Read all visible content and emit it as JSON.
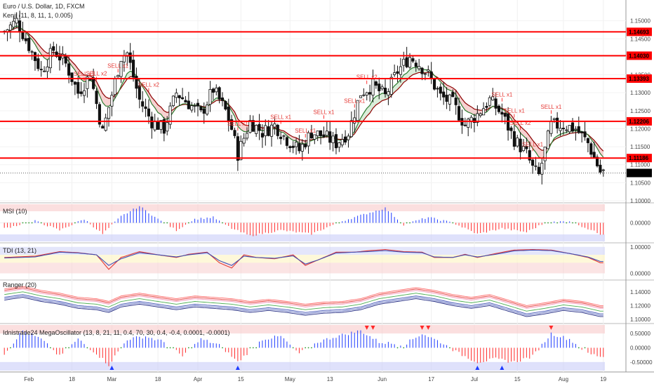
{
  "header": {
    "title": "Euro / U.S. Dollar, 1D, FXCM",
    "indicator": "Kenji (11, 8, 11, 1, 0.005)"
  },
  "colors": {
    "bull": "#ffffff",
    "bear": "#111111",
    "level": "#ff0000",
    "fast_ma": "#2e7d32",
    "slow_ma": "#8b0000",
    "cloud_up": "#cfe9cf",
    "cloud_dn": "#f5c6c6",
    "cloud_blue": "#c8cdf0",
    "pos_bar": "#1f3cff",
    "neg_bar": "#ff2a2a",
    "zero_dot": "#2e9d2e"
  },
  "chart_data": [
    {
      "type": "candlestick",
      "title": "Euro / U.S. Dollar, 1D, FXCM",
      "ylim": [
        1.1,
        1.155
      ],
      "y_ticks": [
        "1.15000",
        "1.14500",
        "1.14000",
        "1.13500",
        "1.13000",
        "1.12500",
        "1.12000",
        "1.11500",
        "1.11000",
        "1.10500",
        "1.10000"
      ],
      "x_ticks": [
        "Feb",
        "18",
        "Mar",
        "18",
        "Apr",
        "15",
        "May",
        "13",
        "Jun",
        "17",
        "Jul",
        "15",
        "Aug",
        "19"
      ],
      "levels": [
        1.14693,
        1.1403,
        1.13393,
        1.12206,
        1.11186
      ],
      "level_labels": [
        "1.14693",
        "1.14030",
        "1.13393",
        "1.12206",
        "1.11186"
      ],
      "last_price": 1.10771,
      "last_price_label": "1.10771",
      "signals": [
        "SELL x1",
        "SELL x2",
        "SELL x1",
        "SELL x2",
        "SELL x1",
        "SELL x1",
        "SELL x1",
        "SELL x1",
        "SELL x1",
        "SELL x2",
        "SELL x1",
        "SELL x1",
        "SELL x2",
        "SELL x1",
        "SELL x1"
      ],
      "anchors": [
        [
          0,
          1.147
        ],
        [
          4,
          1.15
        ],
        [
          8,
          1.143
        ],
        [
          12,
          1.136
        ],
        [
          16,
          1.142
        ],
        [
          20,
          1.138
        ],
        [
          24,
          1.13
        ],
        [
          28,
          1.135
        ],
        [
          32,
          1.119
        ],
        [
          38,
          1.14
        ],
        [
          40,
          1.141
        ],
        [
          44,
          1.128
        ],
        [
          48,
          1.122
        ],
        [
          52,
          1.12
        ],
        [
          56,
          1.13
        ],
        [
          60,
          1.127
        ],
        [
          64,
          1.124
        ],
        [
          68,
          1.131
        ],
        [
          72,
          1.125
        ],
        [
          74,
          1.12
        ],
        [
          76,
          1.113
        ],
        [
          80,
          1.122
        ],
        [
          84,
          1.119
        ],
        [
          88,
          1.121
        ],
        [
          92,
          1.117
        ],
        [
          96,
          1.114
        ],
        [
          100,
          1.119
        ],
        [
          104,
          1.118
        ],
        [
          108,
          1.116
        ],
        [
          112,
          1.119
        ],
        [
          116,
          1.13
        ],
        [
          120,
          1.132
        ],
        [
          124,
          1.129
        ],
        [
          128,
          1.136
        ],
        [
          132,
          1.14
        ],
        [
          135,
          1.138
        ],
        [
          138,
          1.135
        ],
        [
          142,
          1.129
        ],
        [
          146,
          1.127
        ],
        [
          150,
          1.121
        ],
        [
          154,
          1.124
        ],
        [
          158,
          1.128
        ],
        [
          162,
          1.124
        ],
        [
          166,
          1.117
        ],
        [
          170,
          1.113
        ],
        [
          172,
          1.109
        ],
        [
          174,
          1.107
        ],
        [
          178,
          1.121
        ],
        [
          182,
          1.121
        ],
        [
          186,
          1.12
        ],
        [
          190,
          1.116
        ],
        [
          194,
          1.108
        ]
      ]
    },
    {
      "type": "bar",
      "title": "MSI (10)",
      "ylim": [
        -1,
        1
      ],
      "y_ticks": [
        "0.00000"
      ],
      "anchors": [
        [
          0,
          -0.3
        ],
        [
          10,
          0.1
        ],
        [
          18,
          -0.4
        ],
        [
          26,
          0.2
        ],
        [
          32,
          -0.6
        ],
        [
          38,
          0.35
        ],
        [
          44,
          0.9
        ],
        [
          50,
          0.2
        ],
        [
          56,
          -0.4
        ],
        [
          62,
          0.2
        ],
        [
          68,
          0.3
        ],
        [
          74,
          -0.3
        ],
        [
          80,
          -0.7
        ],
        [
          90,
          -0.4
        ],
        [
          100,
          -0.6
        ],
        [
          110,
          0.1
        ],
        [
          118,
          0.5
        ],
        [
          124,
          0.8
        ],
        [
          130,
          -0.1
        ],
        [
          138,
          0.3
        ],
        [
          146,
          0.0
        ],
        [
          154,
          -0.6
        ],
        [
          162,
          -0.3
        ],
        [
          170,
          -0.5
        ],
        [
          176,
          0.0
        ],
        [
          184,
          0.1
        ],
        [
          194,
          -0.6
        ]
      ]
    },
    {
      "type": "line",
      "title": "TDI (13, 21)",
      "ylim": [
        -0.2,
        1.1
      ],
      "y_ticks": [
        "1.00000",
        "0.00000"
      ],
      "series": [
        {
          "anchors": [
            [
              0,
              0.6
            ],
            [
              10,
              0.65
            ],
            [
              18,
              0.82
            ],
            [
              24,
              0.78
            ],
            [
              30,
              0.7
            ],
            [
              34,
              0.15
            ],
            [
              38,
              0.6
            ],
            [
              44,
              0.82
            ],
            [
              50,
              0.7
            ],
            [
              56,
              0.6
            ],
            [
              60,
              0.72
            ],
            [
              66,
              0.8
            ],
            [
              70,
              0.4
            ],
            [
              74,
              0.2
            ],
            [
              78,
              0.7
            ],
            [
              82,
              0.6
            ],
            [
              88,
              0.55
            ],
            [
              94,
              0.7
            ],
            [
              98,
              0.3
            ],
            [
              102,
              0.5
            ],
            [
              108,
              0.8
            ],
            [
              114,
              0.8
            ],
            [
              118,
              0.85
            ],
            [
              124,
              0.9
            ],
            [
              130,
              0.82
            ],
            [
              136,
              0.8
            ],
            [
              140,
              0.6
            ],
            [
              146,
              0.6
            ],
            [
              150,
              0.72
            ],
            [
              154,
              0.6
            ],
            [
              160,
              0.75
            ],
            [
              166,
              0.88
            ],
            [
              172,
              0.9
            ],
            [
              178,
              0.88
            ],
            [
              184,
              0.75
            ],
            [
              190,
              0.6
            ],
            [
              194,
              0.4
            ]
          ]
        },
        {
          "anchors": [
            [
              0,
              0.58
            ],
            [
              10,
              0.62
            ],
            [
              18,
              0.8
            ],
            [
              24,
              0.77
            ],
            [
              30,
              0.7
            ],
            [
              34,
              0.3
            ],
            [
              38,
              0.55
            ],
            [
              44,
              0.78
            ],
            [
              50,
              0.7
            ],
            [
              56,
              0.62
            ],
            [
              60,
              0.7
            ],
            [
              66,
              0.78
            ],
            [
              70,
              0.48
            ],
            [
              74,
              0.3
            ],
            [
              78,
              0.65
            ],
            [
              82,
              0.6
            ],
            [
              88,
              0.57
            ],
            [
              94,
              0.66
            ],
            [
              98,
              0.35
            ],
            [
              102,
              0.5
            ],
            [
              108,
              0.77
            ],
            [
              114,
              0.8
            ],
            [
              118,
              0.82
            ],
            [
              124,
              0.86
            ],
            [
              130,
              0.8
            ],
            [
              136,
              0.78
            ],
            [
              140,
              0.62
            ],
            [
              146,
              0.6
            ],
            [
              150,
              0.7
            ],
            [
              154,
              0.62
            ],
            [
              160,
              0.72
            ],
            [
              166,
              0.85
            ],
            [
              172,
              0.88
            ],
            [
              178,
              0.86
            ],
            [
              184,
              0.75
            ],
            [
              190,
              0.62
            ],
            [
              194,
              0.45
            ]
          ]
        }
      ]
    },
    {
      "type": "line",
      "title": "Ranger (20)",
      "ylim": [
        1.095,
        1.155
      ],
      "y_ticks": [
        "1.14000",
        "1.12000",
        "1.10000"
      ],
      "anchors": [
        [
          0,
          1.136
        ],
        [
          6,
          1.14
        ],
        [
          12,
          1.134
        ],
        [
          18,
          1.13
        ],
        [
          24,
          1.124
        ],
        [
          30,
          1.122
        ],
        [
          34,
          1.118
        ],
        [
          38,
          1.126
        ],
        [
          44,
          1.13
        ],
        [
          50,
          1.126
        ],
        [
          56,
          1.122
        ],
        [
          62,
          1.126
        ],
        [
          68,
          1.124
        ],
        [
          74,
          1.122
        ],
        [
          80,
          1.118
        ],
        [
          86,
          1.121
        ],
        [
          92,
          1.118
        ],
        [
          98,
          1.114
        ],
        [
          104,
          1.117
        ],
        [
          110,
          1.118
        ],
        [
          116,
          1.122
        ],
        [
          122,
          1.13
        ],
        [
          128,
          1.134
        ],
        [
          134,
          1.138
        ],
        [
          140,
          1.134
        ],
        [
          146,
          1.128
        ],
        [
          152,
          1.124
        ],
        [
          158,
          1.128
        ],
        [
          164,
          1.12
        ],
        [
          170,
          1.112
        ],
        [
          176,
          1.116
        ],
        [
          182,
          1.121
        ],
        [
          188,
          1.118
        ],
        [
          194,
          1.112
        ]
      ],
      "series_colors": [
        "#ff6b6b",
        "#e53935",
        "#f48fb1",
        "#4caf50",
        "#3f51b5",
        "#5c6bc0",
        "#1a237e"
      ]
    },
    {
      "type": "bar",
      "title": "Idnistrade24 MegaOscillator (13, 8, 21, 11, 0.4, 70, 30, 0.4, -0.4, 0.0001, -0.0001)",
      "ylim": [
        -0.8,
        0.8
      ],
      "y_ticks": [
        "0.50000",
        "0.00000",
        "-0.50000"
      ],
      "anchors": [
        [
          0,
          -0.2
        ],
        [
          6,
          0.6
        ],
        [
          12,
          0.3
        ],
        [
          18,
          -0.3
        ],
        [
          24,
          0.3
        ],
        [
          30,
          -0.2
        ],
        [
          34,
          -0.6
        ],
        [
          40,
          0.3
        ],
        [
          46,
          0.4
        ],
        [
          52,
          0.2
        ],
        [
          58,
          -0.3
        ],
        [
          64,
          0.3
        ],
        [
          70,
          0.1
        ],
        [
          76,
          -0.5
        ],
        [
          84,
          0.3
        ],
        [
          90,
          0.4
        ],
        [
          96,
          -0.2
        ],
        [
          102,
          0.2
        ],
        [
          108,
          0.4
        ],
        [
          116,
          0.6
        ],
        [
          122,
          0.2
        ],
        [
          130,
          0.1
        ],
        [
          136,
          0.5
        ],
        [
          142,
          0.2
        ],
        [
          148,
          -0.2
        ],
        [
          154,
          -0.5
        ],
        [
          160,
          -0.4
        ],
        [
          166,
          -0.5
        ],
        [
          172,
          -0.3
        ],
        [
          178,
          0.5
        ],
        [
          184,
          0.3
        ],
        [
          190,
          -0.2
        ],
        [
          194,
          -0.3
        ]
      ],
      "up_markers": [
        35,
        76,
        154,
        162
      ],
      "down_markers": [
        118,
        120,
        136,
        138,
        178
      ]
    }
  ]
}
